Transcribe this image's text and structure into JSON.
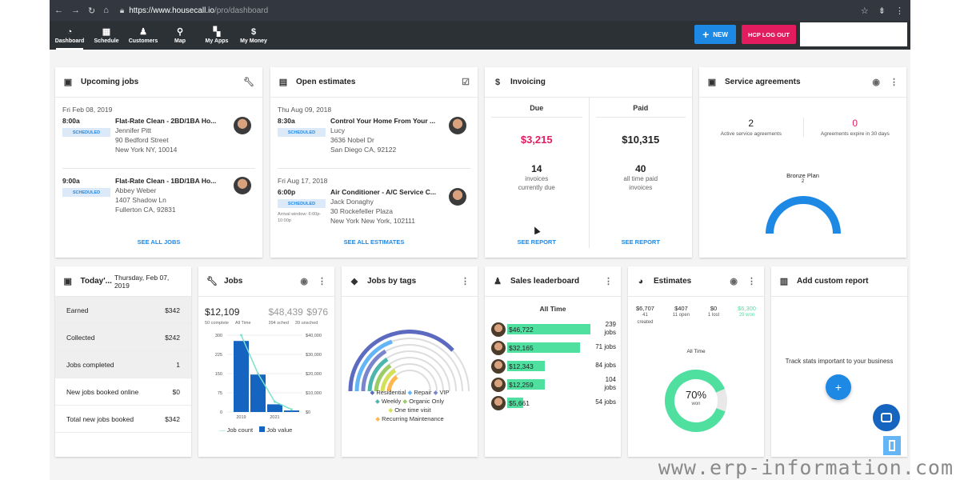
{
  "browser": {
    "url_host": "https://www.housecall.io",
    "url_path": "/pro/dashboard"
  },
  "nav": {
    "items": [
      {
        "label": "Dashboard",
        "icon": "dashboard-icon",
        "active": true
      },
      {
        "label": "Schedule",
        "icon": "calendar-icon"
      },
      {
        "label": "Customers",
        "icon": "customers-icon"
      },
      {
        "label": "Map",
        "icon": "map-pin-icon"
      },
      {
        "label": "My Apps",
        "icon": "grid-icon"
      },
      {
        "label": "My Money",
        "icon": "dollar-icon"
      }
    ],
    "new_label": "NEW",
    "logout_label": "HCP LOG OUT"
  },
  "upcoming_jobs": {
    "title": "Upcoming jobs",
    "date": "Fri Feb 08, 2019",
    "jobs": [
      {
        "time": "8:00a",
        "status": "SCHEDULED",
        "title": "Flat-Rate Clean - 2BD/1BA Ho...",
        "customer": "Jennifer Pitt",
        "street": "90 Bedford Street",
        "city": "New York NY, 10014"
      },
      {
        "time": "9:00a",
        "status": "SCHEDULED",
        "title": "Flat-Rate Clean - 1BD/1BA Ho...",
        "customer": "Abbey Weber",
        "street": "1407 Shadow Ln",
        "city": "Fullerton CA, 92831"
      }
    ],
    "see_all": "SEE ALL JOBS"
  },
  "open_estimates": {
    "title": "Open estimates",
    "groups": [
      {
        "date": "Thu Aug 09, 2018",
        "time": "8:30a",
        "status": "SCHEDULED",
        "title": "Control Your Home From Your ...",
        "customer": "Lucy",
        "street": "3636 Nobel Dr",
        "city": "San Diego CA, 92122",
        "arrival": ""
      },
      {
        "date": "Fri Aug 17, 2018",
        "time": "6:00p",
        "status": "SCHEDULED",
        "title": "Air Conditioner - A/C Service C...",
        "customer": "Jack Donaghy",
        "street": "30 Rockefeller Plaza",
        "city": "New York New York, 102111",
        "arrival": "Arrival window: 6:00p-10:00p"
      }
    ],
    "see_all": "SEE ALL ESTIMATES"
  },
  "invoicing": {
    "title": "Invoicing",
    "due": {
      "label": "Due",
      "amount": "$3,215",
      "count": "14",
      "count_label_1": "invoices",
      "count_label_2": "currently due",
      "report": "SEE REPORT"
    },
    "paid": {
      "label": "Paid",
      "amount": "$10,315",
      "count": "40",
      "count_label_1": "all time paid",
      "count_label_2": "invoices",
      "report": "SEE REPORT"
    }
  },
  "service_agreements": {
    "title": "Service agreements",
    "active": {
      "value": "2",
      "label": "Active service agreements"
    },
    "expiring": {
      "value": "0",
      "label": "Agreements expire in 30 days"
    },
    "plan": {
      "name": "Bronze Plan",
      "value": "2"
    }
  },
  "today": {
    "title": "Today'...",
    "date": "Thursday, Feb 07, 2019",
    "rows": [
      {
        "label": "Earned",
        "value": "$342"
      },
      {
        "label": "Collected",
        "value": "$242"
      },
      {
        "label": "Jobs completed",
        "value": "1"
      },
      {
        "label": "New jobs booked online",
        "value": "$0"
      },
      {
        "label": "Total new jobs booked",
        "value": "$342"
      }
    ]
  },
  "jobs_card": {
    "title": "Jobs",
    "total": "$12,109",
    "all_time": "$48,439",
    "unsched": "$976",
    "sub_complete": "50 complete",
    "sub_alltime": "All Time",
    "sub_sched": "394 sched",
    "sub_unsched": "39 unsched",
    "legend_count": "Job count",
    "legend_value": "Job value"
  },
  "chart_data": {
    "type": "bar",
    "categories": [
      "2019",
      "",
      "2021",
      ""
    ],
    "left_ticks": [
      "300",
      "225",
      "150",
      "75",
      "0"
    ],
    "right_ticks": [
      "$40,000",
      "$30,000",
      "$20,000",
      "$10,000",
      "$0"
    ],
    "x_ticks": [
      "2019",
      "2021"
    ],
    "series": [
      {
        "name": "Job value",
        "values": [
          37000,
          19500,
          4000,
          800
        ],
        "color": "#1565c0"
      },
      {
        "name": "Job count",
        "values": [
          300,
          150,
          40,
          10
        ],
        "color": "#7be0c8"
      }
    ],
    "ylim_left": [
      0,
      300
    ],
    "ylim_right": [
      0,
      40000
    ]
  },
  "jobs_by_tags": {
    "title": "Jobs by tags",
    "tags": [
      {
        "label": "Residential",
        "color": "#5c6bc0"
      },
      {
        "label": "Repair",
        "color": "#64b5f6"
      },
      {
        "label": "VIP",
        "color": "#7986cb"
      },
      {
        "label": "Weekly",
        "color": "#4db6ac"
      },
      {
        "label": "Organic Only",
        "color": "#9ccc65"
      },
      {
        "label": "One time visit",
        "color": "#d4e157"
      },
      {
        "label": "Recurring Maintenance",
        "color": "#ffb74d"
      }
    ]
  },
  "leaderboard": {
    "title": "Sales leaderboard",
    "subtitle": "All Time",
    "rows": [
      {
        "amount": "$46,722",
        "count": "239 jobs",
        "share": 1.0
      },
      {
        "amount": "$32,165",
        "count": "71 jobs",
        "share": 0.86
      },
      {
        "amount": "$12,343",
        "count": "84 jobs",
        "share": 0.41
      },
      {
        "amount": "$12,259",
        "count": "104 jobs",
        "share": 0.41
      },
      {
        "amount": "$5,661",
        "count": "54 jobs",
        "share": 0.13
      }
    ]
  },
  "estimates": {
    "title": "Estimates",
    "cols": [
      {
        "value": "$6,707",
        "sub1": "41",
        "sub2": "created"
      },
      {
        "value": "$407",
        "sub1": "11 open",
        "sub2": ""
      },
      {
        "value": "$0",
        "sub1": "1 lost",
        "sub2": ""
      },
      {
        "value": "$6,300",
        "sub1": "29 won",
        "sub2": ""
      }
    ],
    "all_time": "All Time",
    "won_pct": "70%",
    "won_label": "won",
    "won_fraction": 0.7
  },
  "custom_report": {
    "title": "Add custom report",
    "text": "Track stats important to your business"
  },
  "watermark": "www.erp-information.com"
}
